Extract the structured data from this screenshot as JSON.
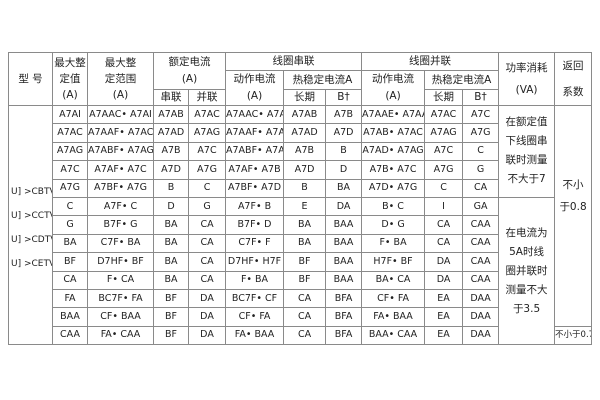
{
  "headers": {
    "model": "型 号",
    "max_setting": "最大整定值(A)",
    "max_range": "最大整定范围(A)",
    "rated_current": "额定电流(A)",
    "series": "串联",
    "parallel": "并联",
    "coil_series": "线圈串联",
    "coil_parallel": "线圈并联",
    "operate_current": "动作电流(A)",
    "thermal_current": "热稳定电流A",
    "long_term": "长期",
    "short_term": "B†",
    "power": "功率消耗(VA)",
    "return_coef": "返回系数"
  },
  "models": [
    "U] >CBTV",
    "U] >CCTV",
    "U] >CDTV",
    "U] >CETV"
  ],
  "rows": [
    [
      "A7AI",
      "A7AAC• A7AI",
      "A7AB",
      "A7AC",
      "A7AAC• A7AAE",
      "A7AB",
      "A7B",
      "A7AAE• A7AAI",
      "A7AC",
      "A7C"
    ],
    [
      "A7AC",
      "A7AAF• A7AC",
      "A7AD",
      "A7AG",
      "A7AAF• A7AB",
      "A7AD",
      "A7D",
      "A7AB• A7AC",
      "A7AG",
      "A7G"
    ],
    [
      "A7AG",
      "A7ABF• A7AG",
      "A7B",
      "A7C",
      "A7ABF• A7AD",
      "A7B",
      "B",
      "A7AD• A7AG",
      "A7C",
      "C"
    ],
    [
      "A7C",
      "A7AF• A7C",
      "A7D",
      "A7G",
      "A7AF• A7B",
      "A7D",
      "D",
      "A7B• A7C",
      "A7G",
      "G"
    ],
    [
      "A7G",
      "A7BF• A7G",
      "B",
      "C",
      "A7BF• A7D",
      "B",
      "BA",
      "A7D• A7G",
      "C",
      "CA"
    ],
    [
      "C",
      "A7F• C",
      "D",
      "G",
      "A7F• B",
      "E",
      "DA",
      "B• C",
      "I",
      "GA"
    ],
    [
      "G",
      "B7F• G",
      "BA",
      "CA",
      "B7F• D",
      "BA",
      "BAA",
      "D• G",
      "CA",
      "CAA"
    ],
    [
      "BA",
      "C7F• BA",
      "BA",
      "CA",
      "C7F• F",
      "BA",
      "BAA",
      "F• BA",
      "CA",
      "CAA"
    ],
    [
      "BF",
      "D7HF• BF",
      "BA",
      "CA",
      "D7HF• H7F",
      "BF",
      "BAA",
      "H7F• BF",
      "DA",
      "CAA"
    ],
    [
      "CA",
      "F• CA",
      "BA",
      "CA",
      "F• BA",
      "BF",
      "BAA",
      "BA• CA",
      "DA",
      "CAA"
    ],
    [
      "FA",
      "BC7F• FA",
      "BF",
      "DA",
      "BC7F• CF",
      "CA",
      "BFA",
      "CF• FA",
      "EA",
      "DAA"
    ],
    [
      "BAA",
      "CF• BAA",
      "BF",
      "DA",
      "CF• FA",
      "CA",
      "BFA",
      "FA• BAA",
      "EA",
      "DAA"
    ],
    [
      "CAA",
      "FA• CAA",
      "BF",
      "DA",
      "FA• BAA",
      "CA",
      "BFA",
      "BAA• CAA",
      "EA",
      "DAA"
    ]
  ],
  "power_notes": [
    "在额定值下线圈串联时测量不大于7",
    "在电流为5A时线圈并联时测量不大于3.5"
  ],
  "return_values": [
    "不小",
    "于0.8",
    "不小于0.7"
  ]
}
